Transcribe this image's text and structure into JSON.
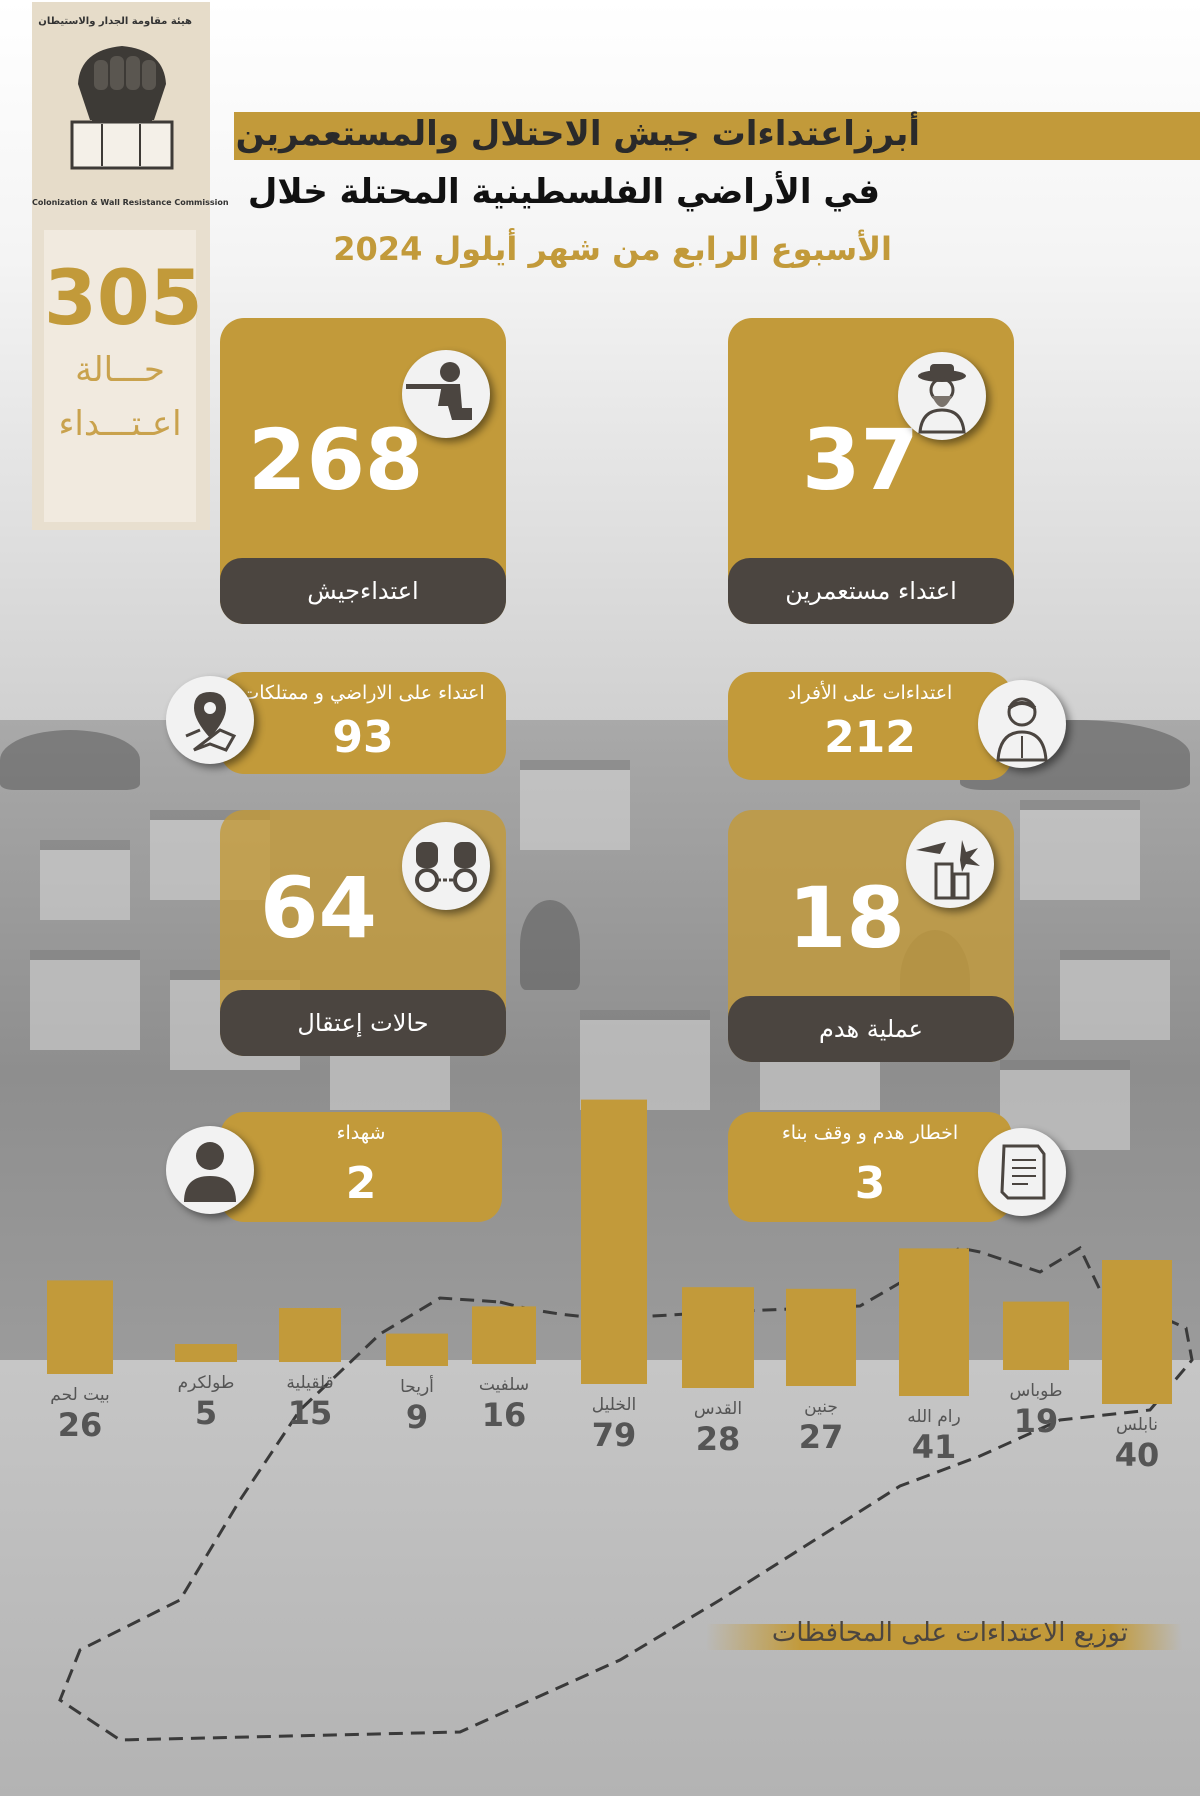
{
  "header": {
    "title_line1": "أبرزاعتداءات جيش الاحتلال والمستعمرين",
    "title_line2": "في الأراضي الفلسطينية المحتلة خلال",
    "title_line3": "الأسبوع الرابع من شهر أيلول  2024"
  },
  "logo": {
    "arabic_text": "هيئة مقاومة الجدار والاستيطان",
    "english_text": "Colonization & Wall Resistance Commission"
  },
  "total": {
    "value": "305",
    "label_line1": "حـــالة",
    "label_line2": "اعـتـــداء"
  },
  "cards": {
    "army": {
      "value": "268",
      "label": "اعتداءجيش",
      "icon": "soldier-icon"
    },
    "settlers": {
      "value": "37",
      "label": "اعتداء مستعمرين",
      "icon": "settler-icon"
    },
    "land": {
      "value": "93",
      "label": "اعتداء على الاراضي و ممتلكات",
      "icon": "map-pin-icon"
    },
    "individuals": {
      "value": "212",
      "label": "اعتداءات على الأفراد",
      "icon": "person-bandaged-icon"
    },
    "arrests": {
      "value": "64",
      "label": "حالات إعتقال",
      "icon": "handcuffs-icon"
    },
    "demolitions": {
      "value": "18",
      "label": "عملية  هدم",
      "icon": "demolition-icon"
    },
    "martyrs": {
      "value": "2",
      "label": "شهداء",
      "icon": "person-icon"
    },
    "notices": {
      "value": "3",
      "label": "اخطار  هدم و وقف بناء",
      "icon": "document-icon"
    }
  },
  "colors": {
    "gold": "#c29a3a",
    "dark": "#4b4540",
    "text_gray": "#555555"
  },
  "chart_data": {
    "type": "bar",
    "title": "توزيع الاعتداءات على المحافظات",
    "categories": [
      "بيت لحم",
      "طولكرم",
      "قلقيلية",
      "أريحا",
      "سلفيت",
      "الخليل",
      "القدس",
      "جنين",
      "رام الله",
      "طوباس",
      "نابلس"
    ],
    "values": [
      26,
      5,
      15,
      9,
      16,
      79,
      28,
      27,
      41,
      19,
      40
    ],
    "value_labels": [
      "26",
      "5",
      "15",
      "9",
      "16",
      "79",
      "28",
      "27",
      "41",
      "19",
      "40"
    ],
    "xlabel": "",
    "ylabel": "",
    "grid": false,
    "legend": "none"
  }
}
